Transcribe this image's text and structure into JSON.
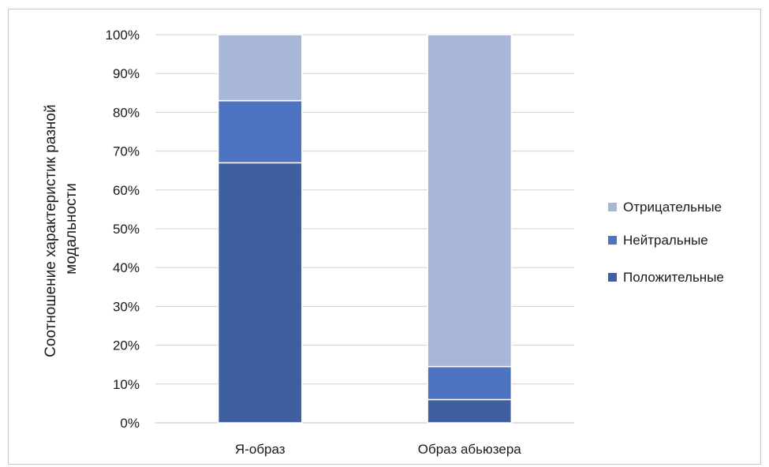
{
  "chart_data": {
    "type": "bar",
    "stacked": true,
    "percent_stacked": true,
    "categories": [
      "Я-образ",
      "Образ абьюзера"
    ],
    "series": [
      {
        "name": "Положительные",
        "values": [
          67,
          6
        ],
        "color": "#3f5f9e"
      },
      {
        "name": "Нейтральные",
        "values": [
          16,
          8.5
        ],
        "color": "#4d73c1"
      },
      {
        "name": "Отрицательные",
        "values": [
          17,
          85.5
        ],
        "color": "#a8b6da"
      }
    ],
    "title": "",
    "xlabel": "",
    "ylabel": "Соотношение характеристик разной модальности",
    "ylim": [
      0,
      100
    ],
    "yticks": [
      "0%",
      "10%",
      "20%",
      "30%",
      "40%",
      "50%",
      "60%",
      "70%",
      "80%",
      "90%",
      "100%"
    ],
    "grid": true,
    "legend_position": "right",
    "legend_order": [
      "Отрицательные",
      "Нейтральные",
      "Положительные"
    ],
    "colors": {
      "grid": "#d0d0d0",
      "axis": "#bfbfbf",
      "segment_separator": "#ffffff"
    }
  }
}
